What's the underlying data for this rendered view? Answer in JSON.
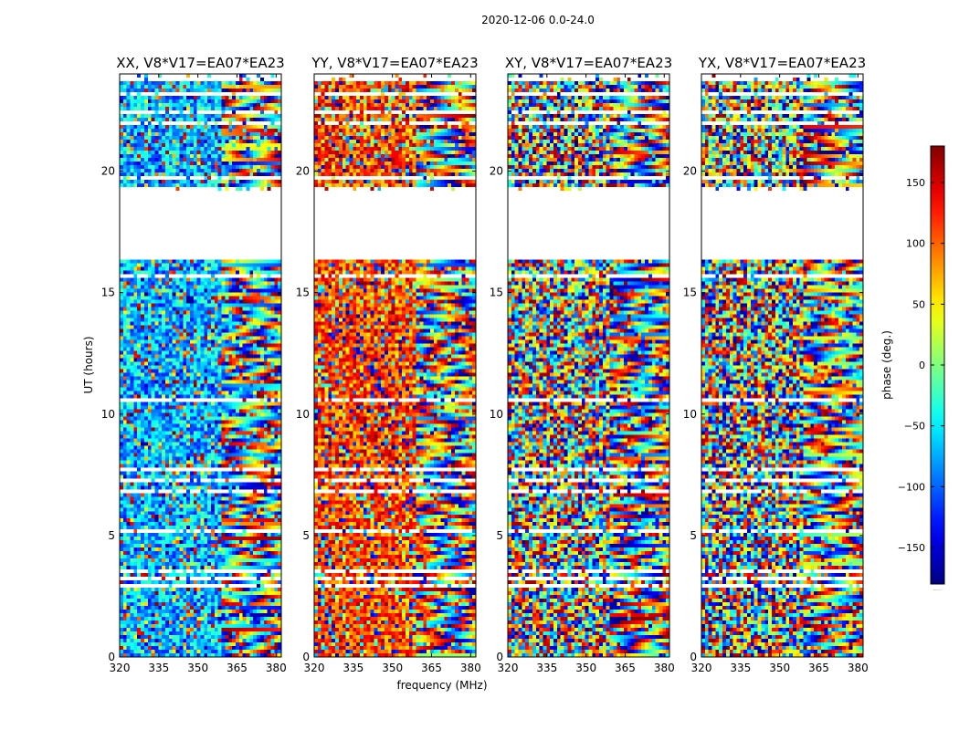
{
  "chart_data": {
    "type": "heatmap",
    "suptitle": "2020-12-06 0.0-24.0",
    "xlabel": "frequency (MHz)",
    "ylabel": "UT (hours)",
    "xlim": [
      320,
      382
    ],
    "ylim": [
      0,
      24
    ],
    "xticks": [
      "320",
      "335",
      "350",
      "365",
      "380"
    ],
    "xtick_values": [
      320,
      335,
      350,
      365,
      380
    ],
    "yticks": [
      "0",
      "5",
      "10",
      "15",
      "20"
    ],
    "ytick_values": [
      0,
      5,
      10,
      15,
      20
    ],
    "panels": [
      {
        "title": "XX, V8*V17=EA07*EA23",
        "bias_phase": -70,
        "bias_strength": 0.75
      },
      {
        "title": "YY, V8*V17=EA07*EA23",
        "bias_phase": 110,
        "bias_strength": 0.7
      },
      {
        "title": "XY, V8*V17=EA07*EA23",
        "bias_phase": 0,
        "bias_strength": 0.0
      },
      {
        "title": "YX, V8*V17=EA07*EA23",
        "bias_phase": 0,
        "bias_strength": 0.0
      }
    ],
    "missing_time_range_hours": [
      16.4,
      19.2
    ],
    "colorbar": {
      "label": "phase (deg.)",
      "range": [
        -180,
        180
      ],
      "ticks": [
        "150",
        "100",
        "50",
        "0",
        "−50",
        "−100",
        "−150"
      ],
      "tick_values": [
        150,
        100,
        50,
        0,
        -50,
        -100,
        -150
      ],
      "colormap": "jet",
      "extra_label": "....."
    }
  }
}
